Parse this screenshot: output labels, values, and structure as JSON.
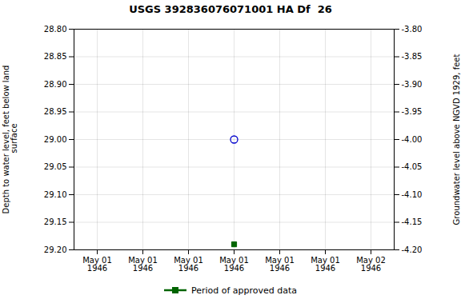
{
  "chart_data": {
    "type": "scatter",
    "title": "USGS 392836076071001 HA Df  26",
    "ylabel": "Depth to water level, feet below land\n surface",
    "y2label": "Groundwater level above NGVD 1929, feet",
    "categories": [
      "May 01\n1946",
      "May 01\n1946",
      "May 01\n1946",
      "May 01\n1946",
      "May 01\n1946",
      "May 01\n1946",
      "May 02\n1946"
    ],
    "series": [
      {
        "color": "#0000cc",
        "marker": "circle-open",
        "values": [
          null,
          null,
          null,
          29.0,
          null,
          null,
          null
        ]
      },
      {
        "name": "Period of approved data",
        "color": "#006400",
        "marker": "square",
        "values": [
          null,
          null,
          null,
          29.19,
          null,
          null,
          null
        ]
      }
    ],
    "ylim": [
      29.2,
      28.8
    ],
    "yticks": [
      {
        "value": 28.8,
        "label": "28.80"
      },
      {
        "value": 28.85,
        "label": "28.85"
      },
      {
        "value": 28.9,
        "label": "28.90"
      },
      {
        "value": 28.95,
        "label": "28.95"
      },
      {
        "value": 29.0,
        "label": "29.00"
      },
      {
        "value": 29.05,
        "label": "29.05"
      },
      {
        "value": 29.1,
        "label": "29.10"
      },
      {
        "value": 29.15,
        "label": "29.15"
      },
      {
        "value": 29.2,
        "label": "29.20"
      }
    ],
    "y2lim": [
      -4.2,
      -3.8
    ],
    "y2ticks": [
      {
        "value": -3.8,
        "label": "-3.80"
      },
      {
        "value": -3.85,
        "label": "-3.85"
      },
      {
        "value": -3.9,
        "label": "-3.90"
      },
      {
        "value": -3.95,
        "label": "-3.95"
      },
      {
        "value": -4.0,
        "label": "-4.00"
      },
      {
        "value": -4.05,
        "label": "-4.05"
      },
      {
        "value": -4.1,
        "label": "-4.10"
      },
      {
        "value": -4.15,
        "label": "-4.15"
      },
      {
        "value": -4.2,
        "label": "-4.20"
      }
    ],
    "grid": true,
    "legend": "bottom"
  }
}
